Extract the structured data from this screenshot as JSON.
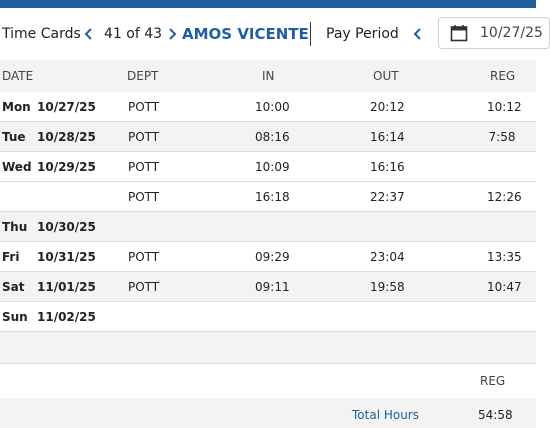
{
  "header": {
    "title": "Time Cards",
    "record_position": "41 of 43",
    "employee_name": "AMOS VICENTE",
    "pay_period_label": "Pay Period",
    "period_date": "10/27/25"
  },
  "table": {
    "columns": [
      "DATE",
      "DEPT",
      "IN",
      "OUT",
      "REG"
    ],
    "rows": [
      {
        "day": "Mon",
        "date": "10/27/25",
        "dept": "POTT",
        "in": "10:00",
        "out": "20:12",
        "reg": "10:12"
      },
      {
        "day": "Tue",
        "date": "10/28/25",
        "dept": "POTT",
        "in": "08:16",
        "out": "16:14",
        "reg": "7:58"
      },
      {
        "day": "Wed",
        "date": "10/29/25",
        "dept": "POTT",
        "in": "10:09",
        "out": "16:16",
        "reg": ""
      },
      {
        "day": "",
        "date": "",
        "dept": "POTT",
        "in": "16:18",
        "out": "22:37",
        "reg": "12:26"
      },
      {
        "day": "Thu",
        "date": "10/30/25",
        "dept": "",
        "in": "",
        "out": "",
        "reg": ""
      },
      {
        "day": "Fri",
        "date": "10/31/25",
        "dept": "POTT",
        "in": "09:29",
        "out": "23:04",
        "reg": "13:35"
      },
      {
        "day": "Sat",
        "date": "11/01/25",
        "dept": "POTT",
        "in": "09:11",
        "out": "19:58",
        "reg": "10:47"
      },
      {
        "day": "Sun",
        "date": "11/02/25",
        "dept": "",
        "in": "",
        "out": "",
        "reg": ""
      }
    ]
  },
  "summary": {
    "reg_label": "REG",
    "total_label": "Total Hours",
    "total_value": "54:58"
  },
  "colors": {
    "accent": "#1f5f9e",
    "row_alt": "#f3f3f3"
  },
  "icons": {
    "prev_record": "chevron-left-icon",
    "next_record": "chevron-right-icon",
    "prev_period": "chevron-left-icon",
    "calendar": "calendar-icon"
  }
}
